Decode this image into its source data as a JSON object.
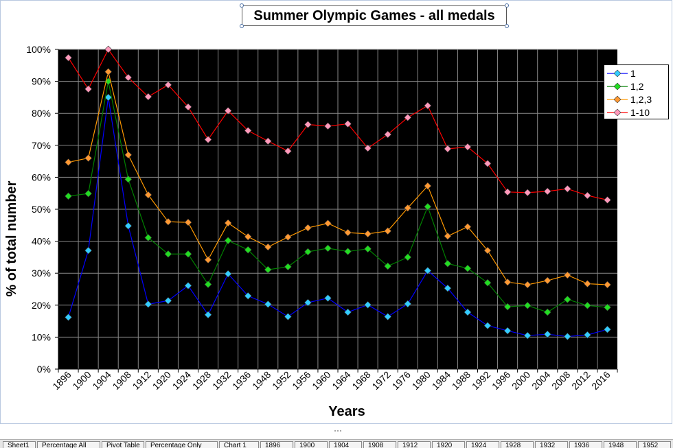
{
  "chart_data": {
    "type": "line",
    "title": "Summer Olympic Games - all medals",
    "xlabel": "Years",
    "ylabel": "% of total number",
    "ylim": [
      0,
      100
    ],
    "yticks": [
      "0%",
      "10%",
      "20%",
      "30%",
      "40%",
      "50%",
      "60%",
      "70%",
      "80%",
      "90%",
      "100%"
    ],
    "grid": true,
    "legend_position": "right",
    "categories": [
      "1896",
      "1900",
      "1904",
      "1908",
      "1912",
      "1920",
      "1924",
      "1928",
      "1932",
      "1936",
      "1948",
      "1952",
      "1956",
      "1960",
      "1964",
      "1968",
      "1972",
      "1976",
      "1980",
      "1984",
      "1988",
      "1992",
      "1996",
      "2000",
      "2004",
      "2008",
      "2012",
      "2016"
    ],
    "series": [
      {
        "name": "1",
        "line_color": "#0000ff",
        "marker_color": "#33ccff",
        "values": [
          16.2,
          37.1,
          85.0,
          44.8,
          20.3,
          21.4,
          26.1,
          17.0,
          29.8,
          22.9,
          20.3,
          16.4,
          20.8,
          22.2,
          17.8,
          20.1,
          16.4,
          20.4,
          30.8,
          25.3,
          17.8,
          13.6,
          12.0,
          10.5,
          10.9,
          10.2,
          10.7,
          12.4
        ]
      },
      {
        "name": "1,2",
        "line_color": "#008000",
        "marker_color": "#22dd22",
        "values": [
          54.1,
          54.9,
          90.0,
          59.4,
          41.1,
          36.0,
          36.0,
          26.5,
          40.2,
          37.3,
          31.1,
          32.0,
          36.7,
          37.8,
          36.8,
          37.6,
          32.2,
          35.0,
          50.8,
          33.0,
          31.5,
          27.0,
          19.5,
          19.9,
          17.8,
          21.8,
          19.9,
          19.3
        ]
      },
      {
        "name": "1,2,3",
        "line_color": "#ff9900",
        "marker_color": "#ff9933",
        "values": [
          64.7,
          66.0,
          93.0,
          67.0,
          54.5,
          46.1,
          45.9,
          34.2,
          45.7,
          41.4,
          38.2,
          41.3,
          44.2,
          45.6,
          42.7,
          42.3,
          43.2,
          50.4,
          57.3,
          41.6,
          44.5,
          37.1,
          27.2,
          26.4,
          27.7,
          29.4,
          26.7,
          26.4
        ]
      },
      {
        "name": "1-10",
        "line_color": "#ff0000",
        "marker_color": "#ff99bb",
        "values": [
          97.4,
          87.6,
          100.0,
          91.2,
          85.2,
          88.9,
          82.0,
          71.8,
          80.8,
          74.6,
          71.3,
          68.2,
          76.5,
          76.0,
          76.7,
          69.1,
          73.4,
          78.7,
          82.4,
          68.9,
          69.5,
          64.3,
          55.4,
          55.2,
          55.6,
          56.4,
          54.3,
          52.9
        ]
      }
    ]
  },
  "sheet_tabs": [
    "Sheet1",
    "Percentage All",
    "Pivot Table",
    "Percentage Only",
    "Chart 1",
    "1896",
    "1900",
    "1904",
    "1908",
    "1912",
    "1920",
    "1924",
    "1928",
    "1932",
    "1936",
    "1948",
    "1952"
  ]
}
